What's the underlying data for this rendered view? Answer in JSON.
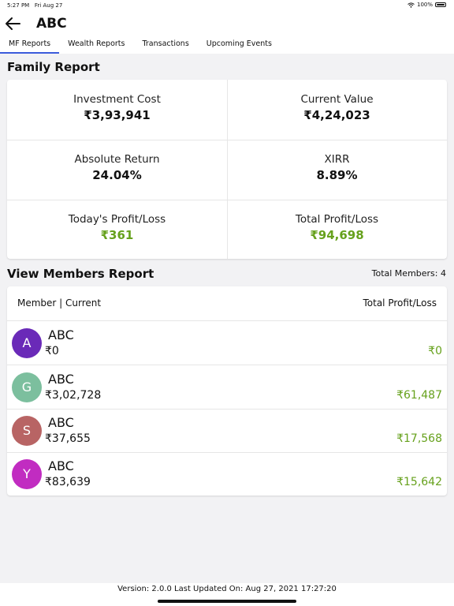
{
  "status_bar": {
    "time": "5:27 PM",
    "date": "Fri Aug 27",
    "battery": "100%"
  },
  "header": {
    "title": "ABC",
    "back_icon": "arrow-left-icon"
  },
  "tabs": [
    {
      "label": "MF Reports",
      "active": true
    },
    {
      "label": "Wealth Reports",
      "active": false
    },
    {
      "label": "Transactions",
      "active": false
    },
    {
      "label": "Upcoming Events",
      "active": false
    }
  ],
  "family_report": {
    "title": "Family Report",
    "investment_cost": {
      "label": "Investment Cost",
      "value": "₹3,93,941"
    },
    "current_value": {
      "label": "Current Value",
      "value": "₹4,24,023"
    },
    "absolute_return": {
      "label": "Absolute Return",
      "value": "24.04%"
    },
    "xirr": {
      "label": "XIRR",
      "value": "8.89%"
    },
    "todays_pl": {
      "label": "Today's Profit/Loss",
      "value": "₹361"
    },
    "total_pl": {
      "label": "Total Profit/Loss",
      "value": "₹94,698"
    }
  },
  "members_report": {
    "title": "View Members Report",
    "total_members": "Total Members: 4",
    "col_left": "Member | Current",
    "col_right": "Total Profit/Loss",
    "members": [
      {
        "initial": "A",
        "name": "ABC",
        "current": "₹0",
        "profit_loss": "₹0",
        "color": "#6a2ab8"
      },
      {
        "initial": "G",
        "name": "ABC",
        "current": "₹3,02,728",
        "profit_loss": "₹61,487",
        "color": "#7cbf9e"
      },
      {
        "initial": "S",
        "name": "ABC",
        "current": "₹37,655",
        "profit_loss": "₹17,568",
        "color": "#b86464"
      },
      {
        "initial": "Y",
        "name": "ABC",
        "current": "₹83,639",
        "profit_loss": "₹15,642",
        "color": "#c12cc1"
      }
    ]
  },
  "footer": {
    "text": "Version: 2.0.0 Last Updated On: Aug 27, 2021 17:27:20"
  },
  "colors": {
    "accent": "#3b5bdb",
    "positive": "#66a11c"
  }
}
